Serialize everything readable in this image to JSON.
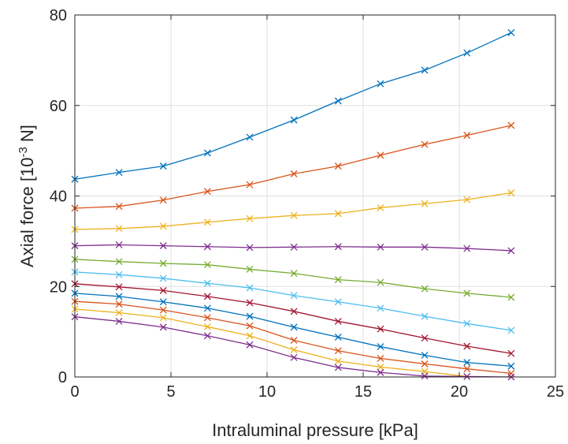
{
  "chart_data": {
    "type": "line",
    "xlabel": "Intraluminal pressure [kPa]",
    "ylabel": "Axial force [10",
    "ylabel_sup": "-3",
    "ylabel_tail": " N]",
    "xlim": [
      0,
      25
    ],
    "ylim": [
      0,
      80
    ],
    "xticks": [
      0,
      5,
      10,
      15,
      20,
      25
    ],
    "yticks": [
      0,
      20,
      40,
      60,
      80
    ],
    "grid": true,
    "marker": "x",
    "x": [
      0,
      2.3,
      4.6,
      6.9,
      9.1,
      11.4,
      13.7,
      15.9,
      18.2,
      20.4,
      22.7
    ],
    "series": [
      {
        "color": "#0072BD",
        "values": [
          43.7,
          45.2,
          46.6,
          49.5,
          53.0,
          56.8,
          61.0,
          64.8,
          67.8,
          71.6,
          76.1
        ]
      },
      {
        "color": "#D95319",
        "values": [
          37.3,
          37.7,
          39.1,
          41.0,
          42.5,
          44.9,
          46.6,
          49.0,
          51.4,
          53.4,
          55.6
        ]
      },
      {
        "color": "#EDB120",
        "values": [
          32.6,
          32.8,
          33.3,
          34.2,
          35.0,
          35.7,
          36.1,
          37.4,
          38.3,
          39.2,
          40.7
        ]
      },
      {
        "color": "#7E2F8E",
        "values": [
          29.0,
          29.2,
          29.0,
          28.8,
          28.6,
          28.7,
          28.8,
          28.7,
          28.7,
          28.4,
          27.9
        ]
      },
      {
        "color": "#77AC30",
        "values": [
          26.0,
          25.5,
          25.1,
          24.8,
          23.8,
          22.9,
          21.5,
          20.9,
          19.5,
          18.5,
          17.6
        ]
      },
      {
        "color": "#4DBEEE",
        "values": [
          23.2,
          22.6,
          21.8,
          20.7,
          19.7,
          18.0,
          16.6,
          15.2,
          13.4,
          11.8,
          10.3
        ]
      },
      {
        "color": "#A2142F",
        "values": [
          20.6,
          19.9,
          19.1,
          17.8,
          16.4,
          14.5,
          12.3,
          10.6,
          8.6,
          6.8,
          5.2
        ]
      },
      {
        "color": "#0072BD",
        "values": [
          18.5,
          17.8,
          16.6,
          15.2,
          13.4,
          11.0,
          8.8,
          6.7,
          4.8,
          3.2,
          2.4
        ]
      },
      {
        "color": "#D95319",
        "values": [
          16.7,
          16.1,
          14.8,
          13.1,
          11.3,
          8.1,
          5.8,
          4.1,
          2.9,
          1.8,
          0.8
        ]
      },
      {
        "color": "#EDB120",
        "values": [
          15.0,
          14.2,
          13.1,
          11.1,
          9.1,
          6.0,
          3.5,
          2.2,
          1.2,
          0.1,
          null
        ]
      },
      {
        "color": "#7E2F8E",
        "values": [
          13.3,
          12.3,
          11.0,
          9.1,
          7.1,
          4.3,
          2.1,
          1.0,
          0.2,
          0.1,
          0.0
        ]
      }
    ]
  }
}
